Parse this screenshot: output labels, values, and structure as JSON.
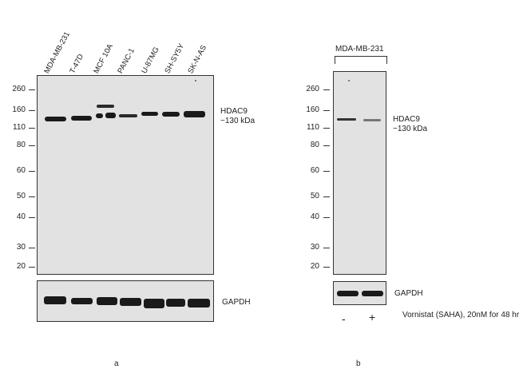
{
  "panel_a": {
    "lanes": [
      "MDA-MB-231",
      "T-47D",
      "MCF 10A",
      "PANC-1",
      "U-87MG",
      "SH-SY5Y",
      "SK-N-AS"
    ],
    "mw_markers": [
      "260",
      "160",
      "110",
      "80",
      "60",
      "50",
      "40",
      "30",
      "20"
    ],
    "target_label": "HDAC9",
    "target_size": "~130 kDa",
    "loading_label": "GAPDH",
    "caption": "a"
  },
  "panel_b": {
    "group_label": "MDA-MB-231",
    "mw_markers": [
      "260",
      "160",
      "110",
      "80",
      "60",
      "50",
      "40",
      "30",
      "20"
    ],
    "target_label": "HDAC9",
    "target_size": "~130 kDa",
    "loading_label": "GAPDH",
    "treatment_minus": "-",
    "treatment_plus": "+",
    "treatment_label": "Vornistat (SAHA), 20nM for 48 hr",
    "caption": "b"
  }
}
